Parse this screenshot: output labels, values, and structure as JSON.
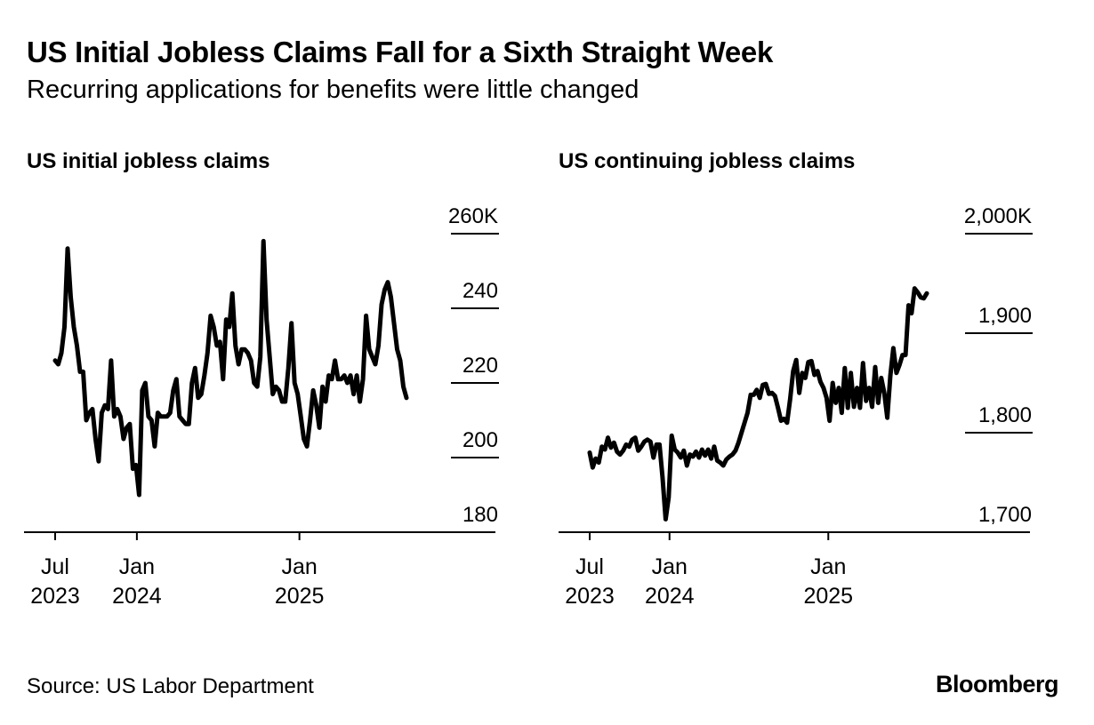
{
  "header": {
    "title": "US Initial Jobless Claims Fall for a Sixth Straight Week",
    "subtitle": "Recurring applications for benefits were little changed"
  },
  "footer": {
    "source": "Source: US Labor Department",
    "brand": "Bloomberg"
  },
  "colors": {
    "line": "#000000",
    "axis": "#000000",
    "background": "#ffffff"
  },
  "chart_data": [
    {
      "type": "line",
      "title": "US initial jobless claims",
      "xlabel": "",
      "ylabel": "",
      "unit_suffix": "K",
      "ylim": [
        180,
        260
      ],
      "y_ticks": [
        {
          "value": 260,
          "label": "260K"
        },
        {
          "value": 240,
          "label": "240"
        },
        {
          "value": 220,
          "label": "220"
        },
        {
          "value": 200,
          "label": "200"
        },
        {
          "value": 180,
          "label": "180"
        }
      ],
      "xlim": [
        "2023-06-20",
        "2025-10-25"
      ],
      "x_ticks": [
        {
          "date": "2023-07-01",
          "line1": "Jul",
          "line2": "2023"
        },
        {
          "date": "2024-01-01",
          "line1": "Jan",
          "line2": "2024"
        },
        {
          "date": "2025-01-01",
          "line1": "Jan",
          "line2": "2025"
        }
      ],
      "grid": false,
      "series": [
        {
          "name": "Initial claims",
          "points": [
            [
              "2023-07-01",
              226
            ],
            [
              "2023-07-08",
              225
            ],
            [
              "2023-07-15",
              228
            ],
            [
              "2023-07-22",
              235
            ],
            [
              "2023-07-29",
              256
            ],
            [
              "2023-08-05",
              243
            ],
            [
              "2023-08-12",
              235
            ],
            [
              "2023-08-19",
              230
            ],
            [
              "2023-08-26",
              223
            ],
            [
              "2023-09-02",
              223
            ],
            [
              "2023-09-09",
              210
            ],
            [
              "2023-09-16",
              212
            ],
            [
              "2023-09-23",
              213
            ],
            [
              "2023-09-30",
              205
            ],
            [
              "2023-10-07",
              199
            ],
            [
              "2023-10-14",
              212
            ],
            [
              "2023-10-21",
              214
            ],
            [
              "2023-10-28",
              213
            ],
            [
              "2023-11-04",
              226
            ],
            [
              "2023-11-11",
              211
            ],
            [
              "2023-11-18",
              213
            ],
            [
              "2023-11-25",
              211
            ],
            [
              "2023-12-02",
              205
            ],
            [
              "2023-12-09",
              208
            ],
            [
              "2023-12-16",
              209
            ],
            [
              "2023-12-23",
              197
            ],
            [
              "2023-12-30",
              198
            ],
            [
              "2024-01-06",
              190
            ],
            [
              "2024-01-13",
              218
            ],
            [
              "2024-01-20",
              220
            ],
            [
              "2024-01-27",
              211
            ],
            [
              "2024-02-03",
              210
            ],
            [
              "2024-02-10",
              203
            ],
            [
              "2024-02-17",
              212
            ],
            [
              "2024-02-24",
              211
            ],
            [
              "2024-03-02",
              211
            ],
            [
              "2024-03-09",
              211
            ],
            [
              "2024-03-16",
              212
            ],
            [
              "2024-03-23",
              218
            ],
            [
              "2024-03-30",
              221
            ],
            [
              "2024-04-06",
              211
            ],
            [
              "2024-04-13",
              210
            ],
            [
              "2024-04-20",
              209
            ],
            [
              "2024-04-27",
              209
            ],
            [
              "2024-05-04",
              220
            ],
            [
              "2024-05-11",
              224
            ],
            [
              "2024-05-18",
              216
            ],
            [
              "2024-05-25",
              217
            ],
            [
              "2024-06-01",
              222
            ],
            [
              "2024-06-08",
              228
            ],
            [
              "2024-06-15",
              238
            ],
            [
              "2024-06-22",
              235
            ],
            [
              "2024-06-29",
              230
            ],
            [
              "2024-07-06",
              231
            ],
            [
              "2024-07-13",
              221
            ],
            [
              "2024-07-20",
              237
            ],
            [
              "2024-07-27",
              235
            ],
            [
              "2024-08-03",
              244
            ],
            [
              "2024-08-10",
              230
            ],
            [
              "2024-08-17",
              225
            ],
            [
              "2024-08-24",
              229
            ],
            [
              "2024-08-31",
              229
            ],
            [
              "2024-09-07",
              228
            ],
            [
              "2024-09-14",
              226
            ],
            [
              "2024-09-21",
              220
            ],
            [
              "2024-09-28",
              219
            ],
            [
              "2024-10-05",
              227
            ],
            [
              "2024-10-12",
              258
            ],
            [
              "2024-10-19",
              237
            ],
            [
              "2024-10-26",
              227
            ],
            [
              "2024-11-02",
              217
            ],
            [
              "2024-11-09",
              219
            ],
            [
              "2024-11-16",
              218
            ],
            [
              "2024-11-23",
              215
            ],
            [
              "2024-11-30",
              215
            ],
            [
              "2024-12-07",
              224
            ],
            [
              "2024-12-14",
              236
            ],
            [
              "2024-12-21",
              220
            ],
            [
              "2024-12-28",
              217
            ],
            [
              "2025-01-04",
              211
            ],
            [
              "2025-01-11",
              205
            ],
            [
              "2025-01-18",
              203
            ],
            [
              "2025-01-25",
              210
            ],
            [
              "2025-02-01",
              218
            ],
            [
              "2025-02-08",
              214
            ],
            [
              "2025-02-15",
              208
            ],
            [
              "2025-02-22",
              219
            ],
            [
              "2025-03-01",
              215
            ],
            [
              "2025-03-08",
              222
            ],
            [
              "2025-03-15",
              221
            ],
            [
              "2025-03-22",
              226
            ],
            [
              "2025-03-29",
              221
            ],
            [
              "2025-04-05",
              221
            ],
            [
              "2025-04-12",
              222
            ],
            [
              "2025-04-19",
              220
            ],
            [
              "2025-04-26",
              222
            ],
            [
              "2025-05-03",
              217
            ],
            [
              "2025-05-10",
              222
            ],
            [
              "2025-05-17",
              215
            ],
            [
              "2025-05-24",
              221
            ],
            [
              "2025-05-31",
              238
            ],
            [
              "2025-06-07",
              229
            ],
            [
              "2025-06-14",
              227
            ],
            [
              "2025-06-21",
              225
            ],
            [
              "2025-06-28",
              230
            ],
            [
              "2025-07-05",
              241
            ],
            [
              "2025-07-12",
              245
            ],
            [
              "2025-07-19",
              247
            ],
            [
              "2025-07-26",
              243
            ],
            [
              "2025-08-02",
              236
            ],
            [
              "2025-08-09",
              229
            ],
            [
              "2025-08-16",
              226
            ],
            [
              "2025-08-23",
              219
            ],
            [
              "2025-08-30",
              216
            ]
          ]
        }
      ]
    },
    {
      "type": "line",
      "title": "US continuing jobless claims",
      "xlabel": "",
      "ylabel": "",
      "unit_suffix": "K",
      "ylim": [
        1700,
        2000
      ],
      "y_ticks": [
        {
          "value": 2000,
          "label": "2,000K"
        },
        {
          "value": 1900,
          "label": "1,900"
        },
        {
          "value": 1800,
          "label": "1,800"
        },
        {
          "value": 1700,
          "label": "1,700"
        }
      ],
      "xlim": [
        "2023-06-20",
        "2025-10-25"
      ],
      "x_ticks": [
        {
          "date": "2023-07-01",
          "line1": "Jul",
          "line2": "2023"
        },
        {
          "date": "2024-01-01",
          "line1": "Jan",
          "line2": "2024"
        },
        {
          "date": "2025-01-01",
          "line1": "Jan",
          "line2": "2025"
        }
      ],
      "grid": false,
      "series": [
        {
          "name": "Continuing claims",
          "points": [
            [
              "2023-07-01",
              1780
            ],
            [
              "2023-07-08",
              1765
            ],
            [
              "2023-07-15",
              1774
            ],
            [
              "2023-07-22",
              1770
            ],
            [
              "2023-07-29",
              1786
            ],
            [
              "2023-08-05",
              1783
            ],
            [
              "2023-08-12",
              1795
            ],
            [
              "2023-08-19",
              1785
            ],
            [
              "2023-08-26",
              1790
            ],
            [
              "2023-09-02",
              1781
            ],
            [
              "2023-09-09",
              1778
            ],
            [
              "2023-09-16",
              1782
            ],
            [
              "2023-09-23",
              1788
            ],
            [
              "2023-09-30",
              1786
            ],
            [
              "2023-10-07",
              1793
            ],
            [
              "2023-10-14",
              1795
            ],
            [
              "2023-10-21",
              1782
            ],
            [
              "2023-10-28",
              1786
            ],
            [
              "2023-11-04",
              1791
            ],
            [
              "2023-11-11",
              1793
            ],
            [
              "2023-11-18",
              1791
            ],
            [
              "2023-11-25",
              1775
            ],
            [
              "2023-12-02",
              1788
            ],
            [
              "2023-12-09",
              1788
            ],
            [
              "2023-12-16",
              1755
            ],
            [
              "2023-12-23",
              1713
            ],
            [
              "2023-12-30",
              1735
            ],
            [
              "2024-01-06",
              1797
            ],
            [
              "2024-01-13",
              1783
            ],
            [
              "2024-01-20",
              1780
            ],
            [
              "2024-01-27",
              1775
            ],
            [
              "2024-02-03",
              1782
            ],
            [
              "2024-02-10",
              1767
            ],
            [
              "2024-02-17",
              1778
            ],
            [
              "2024-02-24",
              1776
            ],
            [
              "2024-03-02",
              1781
            ],
            [
              "2024-03-09",
              1775
            ],
            [
              "2024-03-16",
              1783
            ],
            [
              "2024-03-23",
              1777
            ],
            [
              "2024-03-30",
              1783
            ],
            [
              "2024-04-06",
              1774
            ],
            [
              "2024-04-13",
              1786
            ],
            [
              "2024-04-20",
              1772
            ],
            [
              "2024-04-27",
              1770
            ],
            [
              "2024-05-04",
              1767
            ],
            [
              "2024-05-11",
              1773
            ],
            [
              "2024-05-18",
              1776
            ],
            [
              "2024-05-25",
              1778
            ],
            [
              "2024-06-01",
              1782
            ],
            [
              "2024-06-08",
              1790
            ],
            [
              "2024-06-15",
              1800
            ],
            [
              "2024-06-22",
              1810
            ],
            [
              "2024-06-29",
              1820
            ],
            [
              "2024-07-06",
              1838
            ],
            [
              "2024-07-13",
              1838
            ],
            [
              "2024-07-20",
              1843
            ],
            [
              "2024-07-27",
              1835
            ],
            [
              "2024-08-03",
              1848
            ],
            [
              "2024-08-10",
              1849
            ],
            [
              "2024-08-17",
              1839
            ],
            [
              "2024-08-24",
              1840
            ],
            [
              "2024-08-31",
              1837
            ],
            [
              "2024-09-07",
              1825
            ],
            [
              "2024-09-14",
              1812
            ],
            [
              "2024-09-21",
              1814
            ],
            [
              "2024-09-28",
              1810
            ],
            [
              "2024-10-05",
              1834
            ],
            [
              "2024-10-12",
              1862
            ],
            [
              "2024-10-19",
              1873
            ],
            [
              "2024-10-26",
              1840
            ],
            [
              "2024-11-02",
              1860
            ],
            [
              "2024-11-09",
              1855
            ],
            [
              "2024-11-16",
              1871
            ],
            [
              "2024-11-23",
              1872
            ],
            [
              "2024-11-30",
              1858
            ],
            [
              "2024-12-07",
              1862
            ],
            [
              "2024-12-14",
              1851
            ],
            [
              "2024-12-21",
              1845
            ],
            [
              "2024-12-28",
              1835
            ],
            [
              "2025-01-04",
              1812
            ],
            [
              "2025-01-11",
              1850
            ],
            [
              "2025-01-18",
              1830
            ],
            [
              "2025-01-25",
              1845
            ],
            [
              "2025-02-01",
              1820
            ],
            [
              "2025-02-08",
              1865
            ],
            [
              "2025-02-15",
              1825
            ],
            [
              "2025-02-22",
              1860
            ],
            [
              "2025-03-01",
              1826
            ],
            [
              "2025-03-08",
              1845
            ],
            [
              "2025-03-15",
              1825
            ],
            [
              "2025-03-22",
              1870
            ],
            [
              "2025-03-29",
              1832
            ],
            [
              "2025-04-05",
              1845
            ],
            [
              "2025-04-12",
              1826
            ],
            [
              "2025-04-19",
              1866
            ],
            [
              "2025-04-26",
              1830
            ],
            [
              "2025-05-03",
              1855
            ],
            [
              "2025-05-10",
              1840
            ],
            [
              "2025-05-17",
              1815
            ],
            [
              "2025-05-24",
              1857
            ],
            [
              "2025-05-31",
              1885
            ],
            [
              "2025-06-07",
              1860
            ],
            [
              "2025-06-14",
              1868
            ],
            [
              "2025-06-21",
              1878
            ],
            [
              "2025-06-28",
              1878
            ],
            [
              "2025-07-05",
              1928
            ],
            [
              "2025-07-12",
              1920
            ],
            [
              "2025-07-19",
              1945
            ],
            [
              "2025-07-26",
              1941
            ],
            [
              "2025-08-02",
              1936
            ],
            [
              "2025-08-09",
              1935
            ],
            [
              "2025-08-16",
              1940
            ]
          ]
        }
      ]
    }
  ]
}
